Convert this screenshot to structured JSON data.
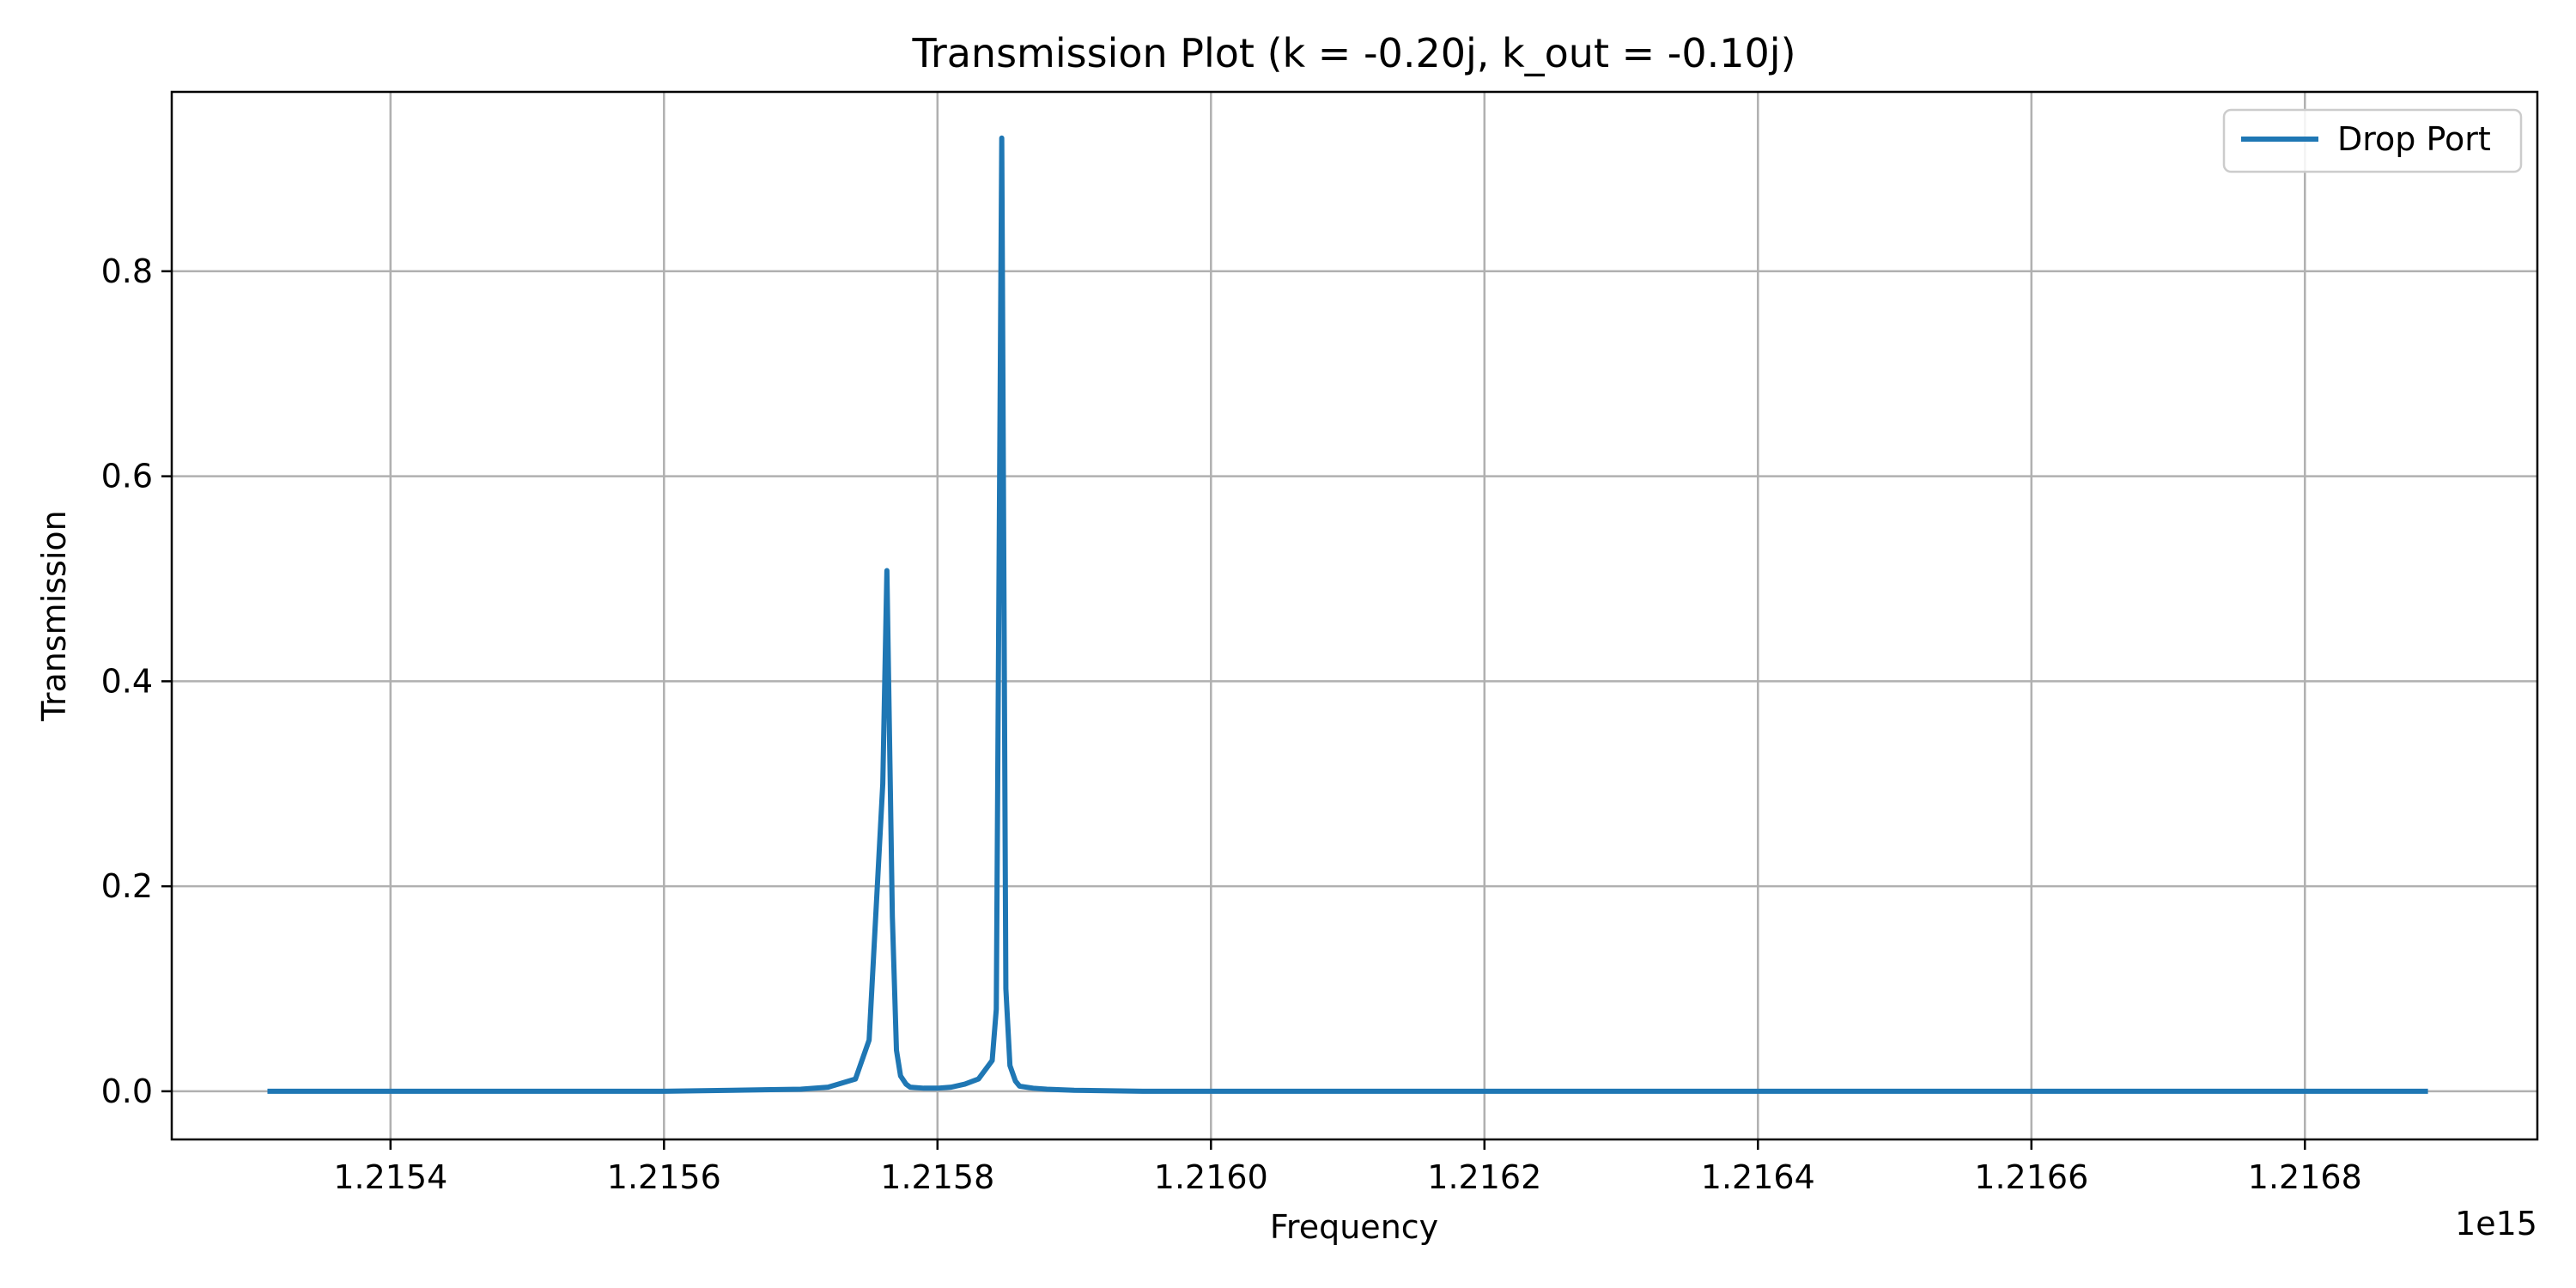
{
  "chart_data": {
    "type": "line",
    "title": "Transmission Plot (k = -0.20j, k_out = -0.10j)",
    "xlabel": "Frequency",
    "ylabel": "Transmission",
    "x_offset_label": "1e15",
    "xlim": [
      1.21524,
      1.21697
    ],
    "ylim": [
      -0.047,
      0.975
    ],
    "x_ticks": [
      1.2154,
      1.2156,
      1.2158,
      1.216,
      1.2162,
      1.2164,
      1.2166,
      1.2168
    ],
    "x_tick_labels": [
      "1.2154",
      "1.2156",
      "1.2158",
      "1.2160",
      "1.2162",
      "1.2164",
      "1.2166",
      "1.2168"
    ],
    "y_ticks": [
      0.0,
      0.2,
      0.4,
      0.6,
      0.8
    ],
    "y_tick_labels": [
      "0.0",
      "0.2",
      "0.4",
      "0.6",
      "0.8"
    ],
    "grid": true,
    "legend_position": "top-right",
    "series": [
      {
        "name": "Drop Port",
        "color": "#1f77b4",
        "x": [
          1.21531,
          1.2154,
          1.2155,
          1.2156,
          1.21565,
          1.2157,
          1.21572,
          1.21574,
          1.21575,
          1.21576,
          1.215763,
          1.215767,
          1.21577,
          1.215773,
          1.215777,
          1.21578,
          1.21579,
          1.2158,
          1.21581,
          1.21582,
          1.21583,
          1.21584,
          1.215843,
          1.215847,
          1.21585,
          1.215853,
          1.215857,
          1.21586,
          1.21587,
          1.21588,
          1.2159,
          1.21595,
          1.216,
          1.2161,
          1.2162,
          1.2163,
          1.2164,
          1.2165,
          1.2166,
          1.2167,
          1.2168,
          1.21689
        ],
        "y": [
          0.0,
          0.0,
          0.0,
          0.0,
          0.001,
          0.002,
          0.004,
          0.012,
          0.05,
          0.3,
          0.508,
          0.17,
          0.04,
          0.015,
          0.007,
          0.004,
          0.003,
          0.003,
          0.004,
          0.007,
          0.012,
          0.03,
          0.08,
          0.93,
          0.1,
          0.025,
          0.01,
          0.005,
          0.003,
          0.002,
          0.001,
          0.0,
          0.0,
          0.0,
          0.0,
          0.0,
          0.0,
          0.0,
          0.0,
          0.0,
          0.0,
          0.0
        ]
      }
    ]
  }
}
